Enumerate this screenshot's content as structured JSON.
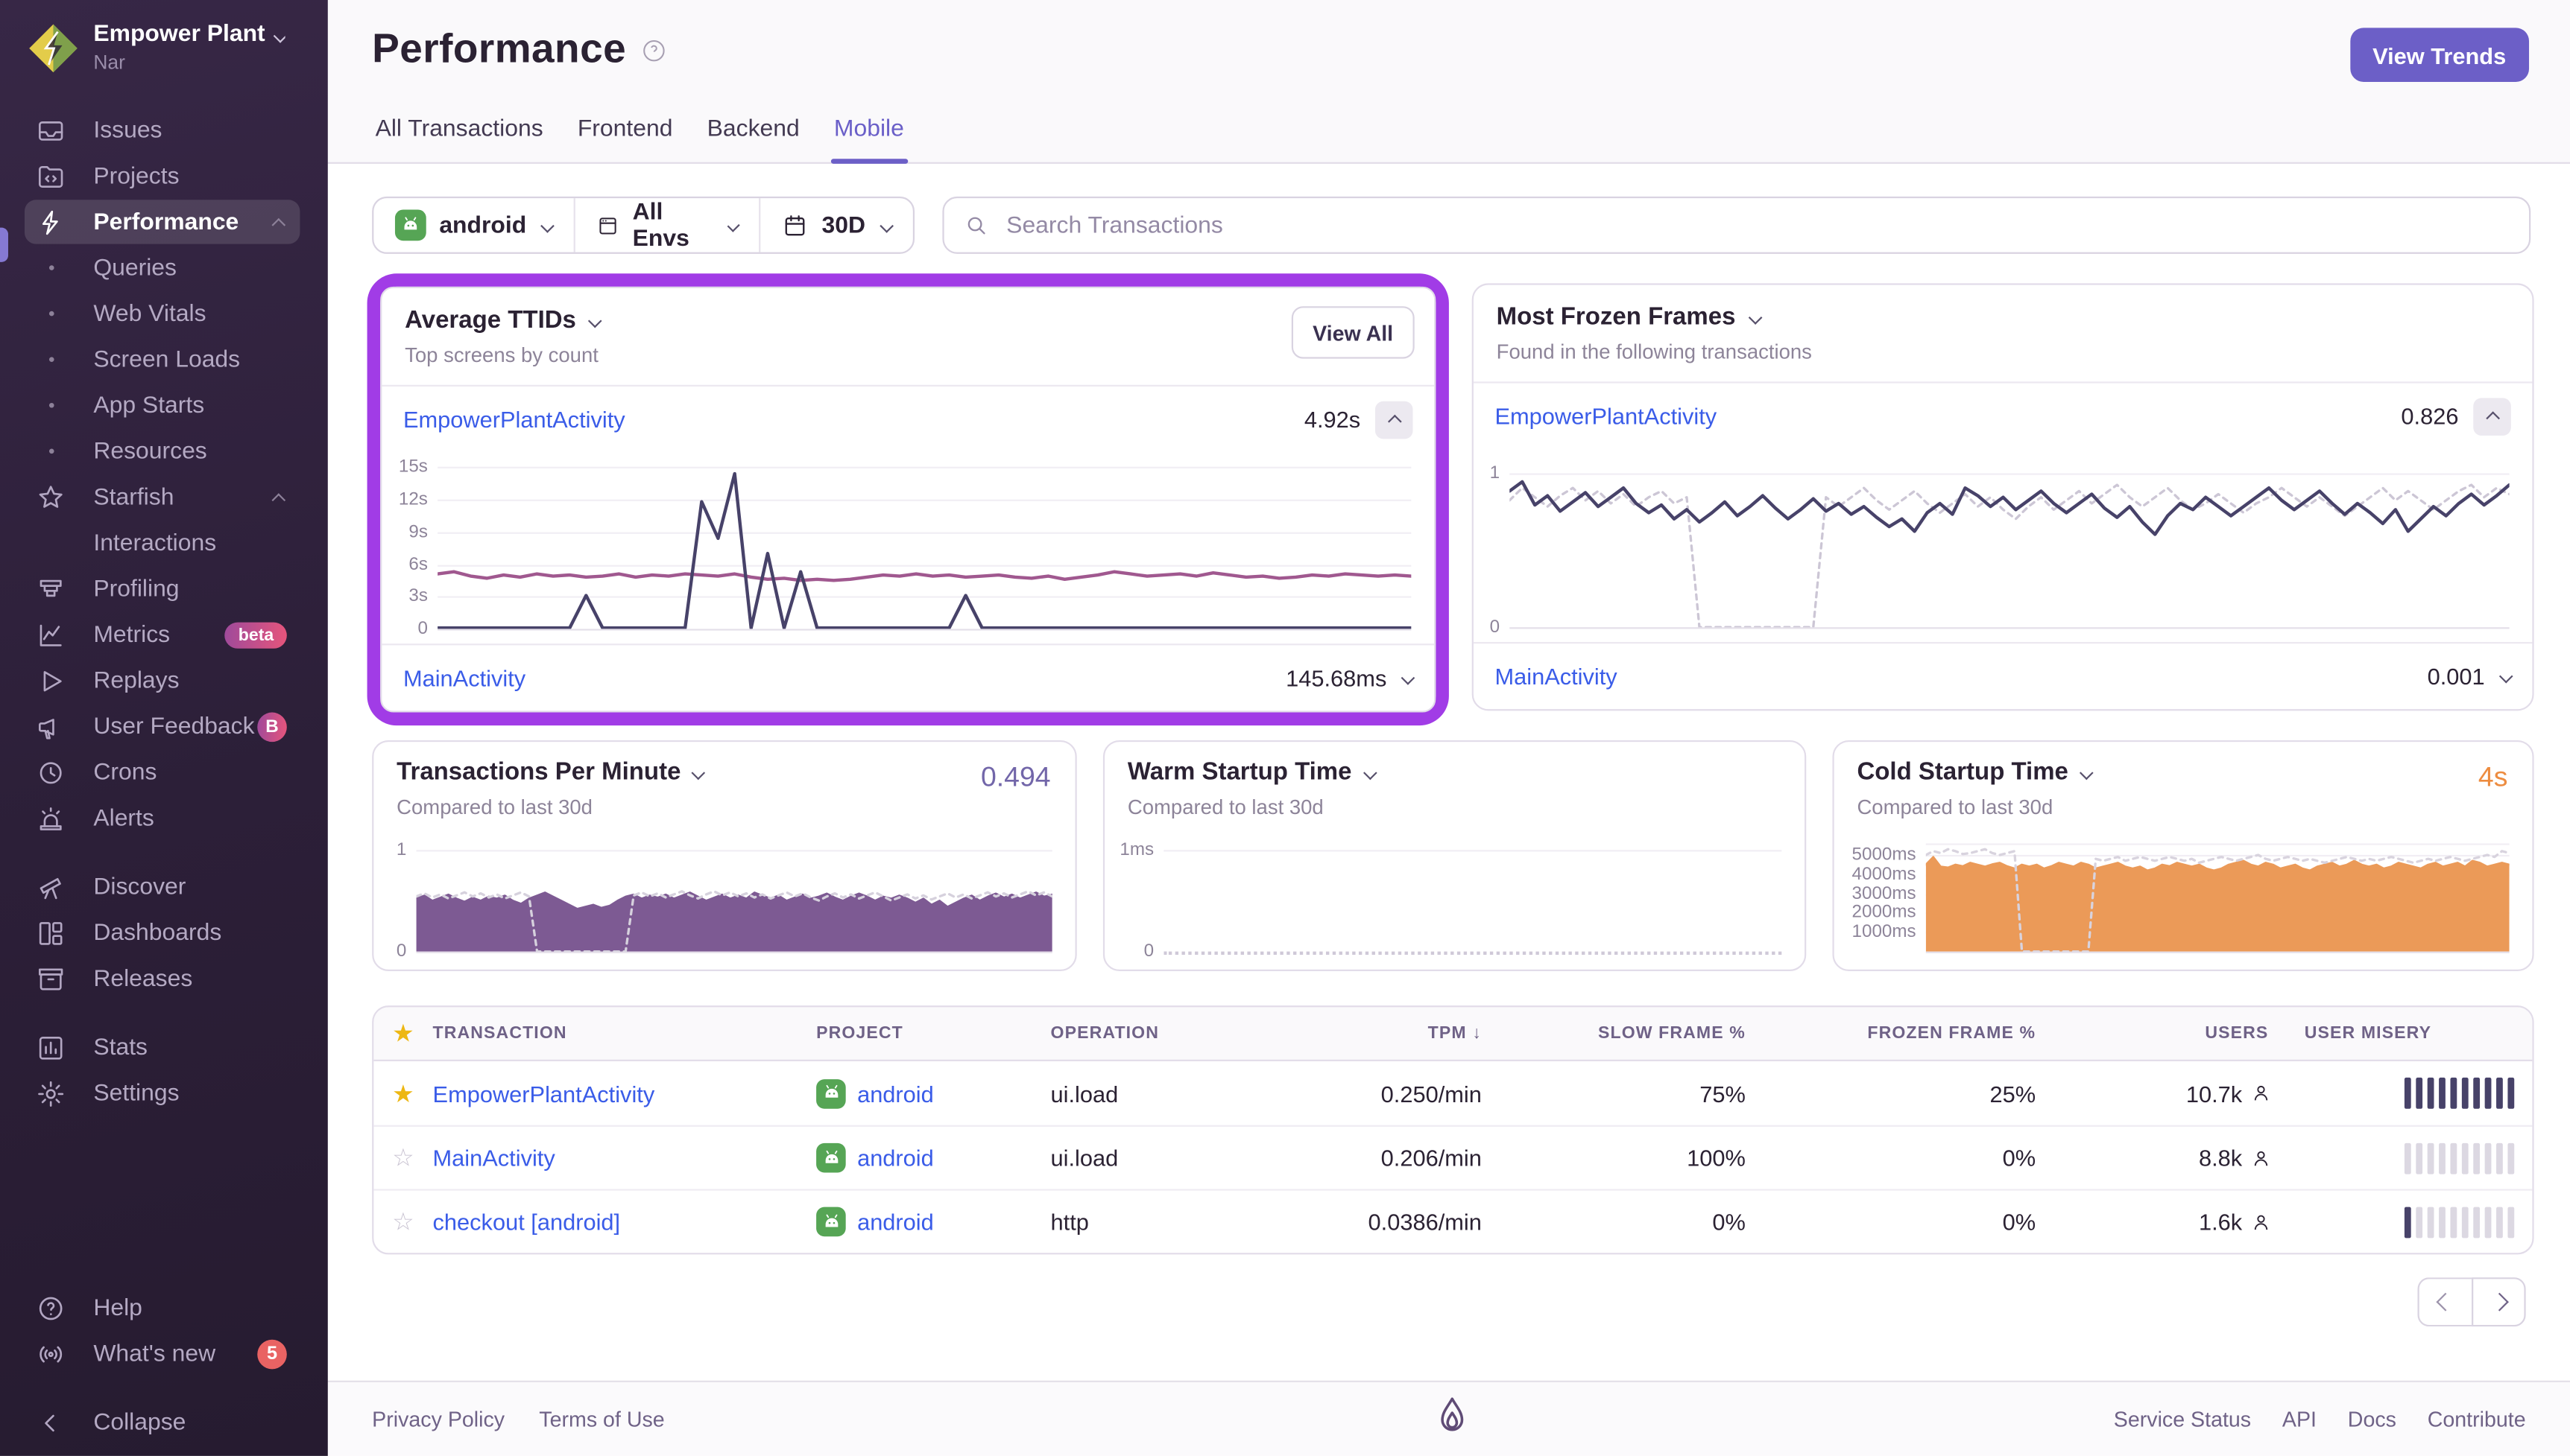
{
  "org": {
    "name": "Empower Plant",
    "subtitle": "Nar"
  },
  "sidebar": {
    "items": [
      {
        "label": "Issues"
      },
      {
        "label": "Projects"
      },
      {
        "label": "Performance"
      },
      {
        "label": "Queries"
      },
      {
        "label": "Web Vitals"
      },
      {
        "label": "Screen Loads"
      },
      {
        "label": "App Starts"
      },
      {
        "label": "Resources"
      },
      {
        "label": "Starfish"
      },
      {
        "label": "Interactions"
      },
      {
        "label": "Profiling"
      },
      {
        "label": "Metrics",
        "badge": "beta"
      },
      {
        "label": "Replays"
      },
      {
        "label": "User Feedback",
        "badge": "B"
      },
      {
        "label": "Crons"
      },
      {
        "label": "Alerts"
      },
      {
        "label": "Discover"
      },
      {
        "label": "Dashboards"
      },
      {
        "label": "Releases"
      },
      {
        "label": "Stats"
      },
      {
        "label": "Settings"
      },
      {
        "label": "Help"
      },
      {
        "label": "What's new",
        "badge": "5"
      },
      {
        "label": "Collapse"
      }
    ]
  },
  "header": {
    "title": "Performance",
    "tabs": [
      {
        "label": "All Transactions"
      },
      {
        "label": "Frontend"
      },
      {
        "label": "Backend"
      },
      {
        "label": "Mobile",
        "active": true
      }
    ],
    "view_trends": "View Trends"
  },
  "filters": {
    "project": "android",
    "env": "All Envs",
    "range": "30D",
    "search_placeholder": "Search Transactions"
  },
  "panels": {
    "ttids": {
      "title": "Average TTIDs",
      "subtitle": "Top screens by count",
      "view_all": "View All",
      "row_top": {
        "name": "EmpowerPlantActivity",
        "value": "4.92s"
      },
      "row_bottom": {
        "name": "MainActivity",
        "value": "145.68ms"
      }
    },
    "frozen": {
      "title": "Most Frozen Frames",
      "subtitle": "Found in the following transactions",
      "row_top": {
        "name": "EmpowerPlantActivity",
        "value": "0.826"
      },
      "row_bottom": {
        "name": "MainActivity",
        "value": "0.001"
      }
    },
    "tpm": {
      "title": "Transactions Per Minute",
      "value": "0.494",
      "subtitle": "Compared to last 30d"
    },
    "warm": {
      "title": "Warm Startup Time",
      "subtitle": "Compared to last 30d"
    },
    "cold": {
      "title": "Cold Startup Time",
      "value": "4s",
      "subtitle": "Compared to last 30d"
    }
  },
  "charts": {
    "ttid": {
      "ymax": 15.5,
      "ticks": [
        {
          "l": "15s",
          "v": 15
        },
        {
          "l": "12s",
          "v": 12
        },
        {
          "l": "9s",
          "v": 9
        },
        {
          "l": "6s",
          "v": 6
        },
        {
          "l": "3s",
          "v": 3
        },
        {
          "l": "0",
          "v": 0
        }
      ],
      "series": [
        {
          "color": "#A0588F",
          "width": 2,
          "values": [
            5.1,
            5.3,
            4.9,
            4.7,
            5.0,
            4.8,
            5.1,
            4.9,
            5.0,
            4.8,
            4.9,
            5.1,
            4.8,
            5.0,
            4.9,
            5.1,
            5.0,
            4.9,
            5.1,
            4.8,
            4.6,
            4.7,
            4.5,
            4.6,
            4.5,
            4.6,
            4.8,
            5.0,
            4.9,
            5.1,
            4.9,
            5.0,
            4.8,
            4.9,
            5.0,
            4.8,
            4.7,
            4.9,
            4.6,
            4.8,
            5.0,
            5.3,
            5.1,
            4.9,
            5.0,
            5.1,
            4.9,
            5.2,
            5.0,
            4.8,
            4.9,
            4.7,
            4.8,
            5.0,
            4.9,
            5.1,
            5.0,
            4.9,
            5.0,
            4.9
          ]
        },
        {
          "color": "#474269",
          "width": 2,
          "values": [
            0.08,
            0.08,
            0.08,
            0.08,
            0.08,
            0.08,
            0.08,
            0.08,
            0.08,
            3.1,
            0.08,
            0.08,
            0.08,
            0.08,
            0.08,
            0.08,
            11.8,
            8.4,
            14.4,
            0.08,
            7.0,
            0.08,
            5.3,
            0.08,
            0.08,
            0.08,
            0.08,
            0.08,
            0.08,
            0.08,
            0.08,
            0.08,
            3.1,
            0.08,
            0.08,
            0.08,
            0.08,
            0.08,
            0.08,
            0.08,
            0.08,
            0.08,
            0.08,
            0.08,
            0.08,
            0.08,
            0.08,
            0.08,
            0.08,
            0.08,
            0.08,
            0.08,
            0.08,
            0.08,
            0.08,
            0.08,
            0.08,
            0.08,
            0.08,
            0.08
          ]
        }
      ]
    },
    "frozen": {
      "ymax": 1.09,
      "ticks": [
        {
          "l": "1",
          "v": 1
        },
        {
          "l": "0",
          "v": 0
        }
      ],
      "series": [
        {
          "color": "#CCC6D5",
          "width": 1.5,
          "dash": "3 3",
          "values": [
            0.82,
            0.9,
            0.84,
            0.78,
            0.85,
            0.9,
            0.82,
            0.88,
            0.8,
            0.86,
            0.78,
            0.84,
            0.88,
            0.8,
            0.84,
            0,
            0,
            0,
            0,
            0,
            0,
            0,
            0,
            0,
            0,
            0.84,
            0.78,
            0.84,
            0.9,
            0.82,
            0.76,
            0.82,
            0.88,
            0.8,
            0.74,
            0.8,
            0.86,
            0.78,
            0.84,
            0.76,
            0.7,
            0.78,
            0.84,
            0.76,
            0.82,
            0.88,
            0.8,
            0.86,
            0.92,
            0.84,
            0.78,
            0.84,
            0.9,
            0.82,
            0.76,
            0.8,
            0.86,
            0.8,
            0.74,
            0.8,
            0.84,
            0.9,
            0.84,
            0.78,
            0.84,
            0.78,
            0.72,
            0.78,
            0.84,
            0.9,
            0.82,
            0.88,
            0.82,
            0.76,
            0.82,
            0.88,
            0.92,
            0.84,
            0.9,
            0.86
          ]
        },
        {
          "color": "#474269",
          "width": 2,
          "values": [
            0.88,
            0.94,
            0.79,
            0.85,
            0.75,
            0.81,
            0.87,
            0.78,
            0.84,
            0.9,
            0.8,
            0.74,
            0.79,
            0.7,
            0.76,
            0.68,
            0.74,
            0.81,
            0.72,
            0.78,
            0.85,
            0.77,
            0.7,
            0.76,
            0.83,
            0.75,
            0.8,
            0.73,
            0.78,
            0.71,
            0.65,
            0.7,
            0.62,
            0.74,
            0.8,
            0.73,
            0.9,
            0.85,
            0.78,
            0.84,
            0.76,
            0.82,
            0.88,
            0.8,
            0.74,
            0.8,
            0.86,
            0.77,
            0.71,
            0.78,
            0.68,
            0.6,
            0.72,
            0.8,
            0.76,
            0.84,
            0.78,
            0.72,
            0.78,
            0.84,
            0.9,
            0.82,
            0.76,
            0.82,
            0.88,
            0.8,
            0.73,
            0.8,
            0.74,
            0.67,
            0.76,
            0.62,
            0.7,
            0.78,
            0.72,
            0.8,
            0.86,
            0.79,
            0.85,
            0.92
          ]
        }
      ]
    },
    "tpm": {
      "ymax": 1.06,
      "ticks": [
        {
          "l": "1",
          "v": 1
        },
        {
          "l": "0",
          "v": 0
        }
      ],
      "series": [
        {
          "color": "#7D5A93",
          "width": 1,
          "fill": "#7D5A93",
          "values": [
            0.52,
            0.55,
            0.5,
            0.53,
            0.56,
            0.52,
            0.49,
            0.53,
            0.5,
            0.54,
            0.52,
            0.55,
            0.5,
            0.47,
            0.52,
            0.55,
            0.58,
            0.54,
            0.5,
            0.46,
            0.42,
            0.44,
            0.46,
            0.43,
            0.45,
            0.5,
            0.54,
            0.56,
            0.52,
            0.55,
            0.53,
            0.56,
            0.52,
            0.55,
            0.58,
            0.54,
            0.5,
            0.53,
            0.56,
            0.52,
            0.55,
            0.52,
            0.58,
            0.55,
            0.52,
            0.55,
            0.5,
            0.53,
            0.56,
            0.52,
            0.54,
            0.57,
            0.53,
            0.5,
            0.54,
            0.57,
            0.54,
            0.5,
            0.54,
            0.52,
            0.55,
            0.52,
            0.48,
            0.52,
            0.46,
            0.5,
            0.44,
            0.48,
            0.52,
            0.55,
            0.5,
            0.54,
            0.57,
            0.53,
            0.56,
            0.52,
            0.55,
            0.58,
            0.54,
            0.56
          ]
        },
        {
          "color": "#D6D1DD",
          "width": 1.5,
          "dash": "3 3",
          "values": [
            0.54,
            0.57,
            0.53,
            0.56,
            0.52,
            0.55,
            0.58,
            0.54,
            0.57,
            0.53,
            0.56,
            0.52,
            0.55,
            0.58,
            0.54,
            0,
            0,
            0,
            0,
            0,
            0,
            0,
            0,
            0,
            0,
            0,
            0,
            0.55,
            0.58,
            0.54,
            0.57,
            0.53,
            0.56,
            0.59,
            0.55,
            0.52,
            0.56,
            0.59,
            0.55,
            0.58,
            0.54,
            0.57,
            0.53,
            0.56,
            0.52,
            0.55,
            0.58,
            0.54,
            0.57,
            0.53,
            0.5,
            0.54,
            0.57,
            0.53,
            0.56,
            0.52,
            0.55,
            0.58,
            0.54,
            0.5,
            0.53,
            0.56,
            0.52,
            0.55,
            0.51,
            0.54,
            0.57,
            0.53,
            0.56,
            0.52,
            0.55,
            0.58,
            0.54,
            0.57,
            0.53,
            0.56,
            0.59,
            0.55,
            0.58,
            0.54
          ]
        }
      ]
    },
    "warm": {
      "ymax": 1.06,
      "zeroDashed": true,
      "ticks": [
        {
          "l": "1ms",
          "v": 1
        },
        {
          "l": "0",
          "v": 0
        }
      ],
      "series": []
    },
    "cold": {
      "ymax": 5600,
      "ticks": [
        {
          "l": "",
          "v": 5600
        },
        {
          "l": "5000ms",
          "v": 5000
        },
        {
          "l": "4000ms",
          "v": 4000
        },
        {
          "l": "3000ms",
          "v": 3000
        },
        {
          "l": "2000ms",
          "v": 2000
        },
        {
          "l": "1000ms",
          "v": 1000
        },
        {
          "l": "",
          "v": 0
        }
      ],
      "series": [
        {
          "color": "#EB9A58",
          "width": 1.2,
          "fill": "#EB9A58",
          "values": [
            4500,
            4900,
            4400,
            4350,
            4500,
            4420,
            4600,
            4500,
            4400,
            4520,
            4600,
            4420,
            4300,
            4500,
            4400,
            4500,
            4300,
            4420,
            4600,
            4500,
            4400,
            4600,
            4500,
            4300,
            4400,
            4500,
            4600,
            4400,
            4300,
            4400,
            4200,
            4300,
            4500,
            4420,
            4600,
            4500,
            4400,
            4500,
            4300,
            4200,
            4300,
            4500,
            4600,
            4700,
            4500,
            4400,
            4600,
            4500,
            4300,
            4400,
            4500,
            4300,
            4200,
            4400,
            4500,
            4600,
            4400,
            4500,
            4700,
            4500,
            4400,
            4500,
            4300,
            4400,
            4600,
            4500,
            4400,
            4300,
            4500,
            4600,
            4400,
            4500,
            4600,
            4400,
            4700,
            4600,
            4400,
            4500,
            4600,
            4500
          ]
        },
        {
          "color": "#D8D3DE",
          "width": 1.5,
          "dash": "3 3",
          "values": [
            5000,
            5200,
            5100,
            5300,
            5200,
            5050,
            5100,
            5200,
            5300,
            5100,
            5000,
            5100,
            5200,
            0,
            0,
            0,
            0,
            0,
            0,
            0,
            0,
            0,
            0,
            4800,
            4700,
            4800,
            4900,
            4700,
            4800,
            4900,
            4800,
            4700,
            4800,
            4900,
            4800,
            4700,
            4800,
            4600,
            4700,
            4800,
            4900,
            4800,
            4700,
            4800,
            4900,
            5000,
            4800,
            4700,
            4800,
            4900,
            4800,
            4700,
            4800,
            4700,
            4600,
            4700,
            4800,
            4900,
            4800,
            4700,
            4800,
            4700,
            4800,
            4900,
            4800,
            4700,
            4600,
            4700,
            4800,
            4700,
            4800,
            4900,
            4800,
            4700,
            4800,
            4900,
            5000,
            4900,
            5200,
            5100
          ]
        }
      ]
    }
  },
  "table": {
    "headers": {
      "transaction": "Transaction",
      "project": "Project",
      "operation": "Operation",
      "tpm": "TPM",
      "slow": "Slow Frame %",
      "frozen": "Frozen Frame %",
      "users": "Users",
      "misery": "User Misery"
    },
    "sort_arrow": "↓",
    "rows": [
      {
        "starred": true,
        "transaction": "EmpowerPlantActivity",
        "project": "android",
        "operation": "ui.load",
        "tpm": "0.250/min",
        "slow": "75%",
        "frozen": "25%",
        "users": "10.7k",
        "misery": 10
      },
      {
        "starred": false,
        "transaction": "MainActivity",
        "project": "android",
        "operation": "ui.load",
        "tpm": "0.206/min",
        "slow": "100%",
        "frozen": "0%",
        "users": "8.8k",
        "misery": 0
      },
      {
        "starred": false,
        "transaction": "checkout [android]",
        "project": "android",
        "operation": "http",
        "tpm": "0.0386/min",
        "slow": "0%",
        "frozen": "0%",
        "users": "1.6k",
        "misery": 1
      }
    ]
  },
  "footer": {
    "links_left": [
      "Privacy Policy",
      "Terms of Use"
    ],
    "links_right": [
      "Service Status",
      "API",
      "Docs",
      "Contribute"
    ]
  },
  "colors": {
    "accent": "#6C5FC7",
    "highlight_border": "#A13CE6",
    "link": "#3A5CE8",
    "orange": "#ED8C40",
    "chart_navy": "#474269",
    "chart_mauve": "#A0588F",
    "tpm_fill": "#7D5A93",
    "cold_fill": "#EB9A58"
  }
}
